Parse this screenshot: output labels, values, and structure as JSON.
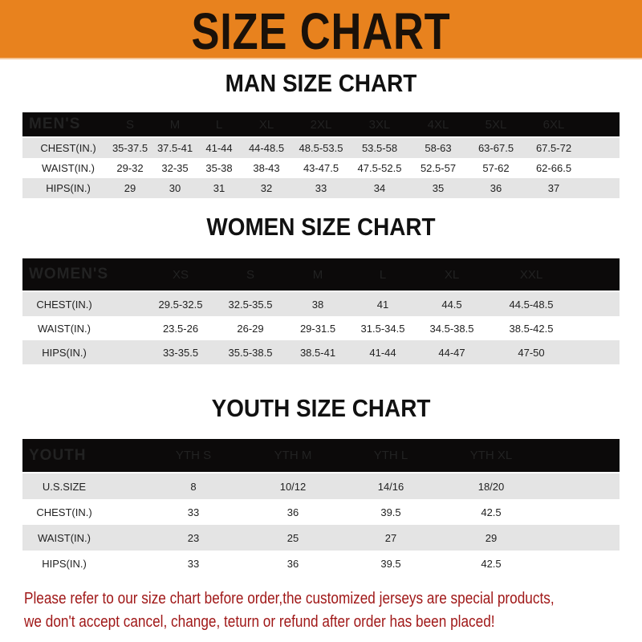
{
  "header": {
    "title": "SIZE CHART",
    "accent_color": "#E8821E"
  },
  "men": {
    "title": "MAN SIZE CHART",
    "columns": [
      "MEN'S",
      "S",
      "M",
      "L",
      "XL",
      "2XL",
      "3XL",
      "4XL",
      "5XL",
      "6XL"
    ],
    "rows": [
      [
        "CHEST(IN.)",
        "35-37.5",
        "37.5-41",
        "41-44",
        "44-48.5",
        "48.5-53.5",
        "53.5-58",
        "58-63",
        "63-67.5",
        "67.5-72"
      ],
      [
        "WAIST(IN.)",
        "29-32",
        "32-35",
        "35-38",
        "38-43",
        "43-47.5",
        "47.5-52.5",
        "52.5-57",
        "57-62",
        "62-66.5"
      ],
      [
        "HIPS(IN.)",
        "29",
        "30",
        "31",
        "32",
        "33",
        "34",
        "35",
        "36",
        "37"
      ]
    ]
  },
  "women": {
    "title": "WOMEN SIZE CHART",
    "columns": [
      "WOMEN'S",
      "XS",
      "S",
      "M",
      "L",
      "XL",
      "XXL"
    ],
    "rows": [
      [
        "CHEST(IN.)",
        "29.5-32.5",
        "32.5-35.5",
        "38",
        "41",
        "44.5",
        "44.5-48.5"
      ],
      [
        "WAIST(IN.)",
        "23.5-26",
        "26-29",
        "29-31.5",
        "31.5-34.5",
        "34.5-38.5",
        "38.5-42.5"
      ],
      [
        "HIPS(IN.)",
        "33-35.5",
        "35.5-38.5",
        "38.5-41",
        "41-44",
        "44-47",
        "47-50"
      ]
    ]
  },
  "youth": {
    "title": "YOUTH SIZE CHART",
    "columns": [
      "YOUTH",
      "YTH S",
      "YTH M",
      "YTH L",
      "YTH XL"
    ],
    "rows": [
      [
        "U.S.SIZE",
        "8",
        "10/12",
        "14/16",
        "18/20"
      ],
      [
        "CHEST(IN.)",
        "33",
        "36",
        "39.5",
        "42.5"
      ],
      [
        "WAIST(IN.)",
        "23",
        "25",
        "27",
        "29"
      ],
      [
        "HIPS(IN.)",
        "33",
        "36",
        "39.5",
        "42.5"
      ]
    ]
  },
  "footer": {
    "line1": "Please refer to our size chart before order,the customized jerseys are special products,",
    "line2": "we don't accept cancel, change, teturn or refund after order has been placed!",
    "color": "#a01818"
  }
}
